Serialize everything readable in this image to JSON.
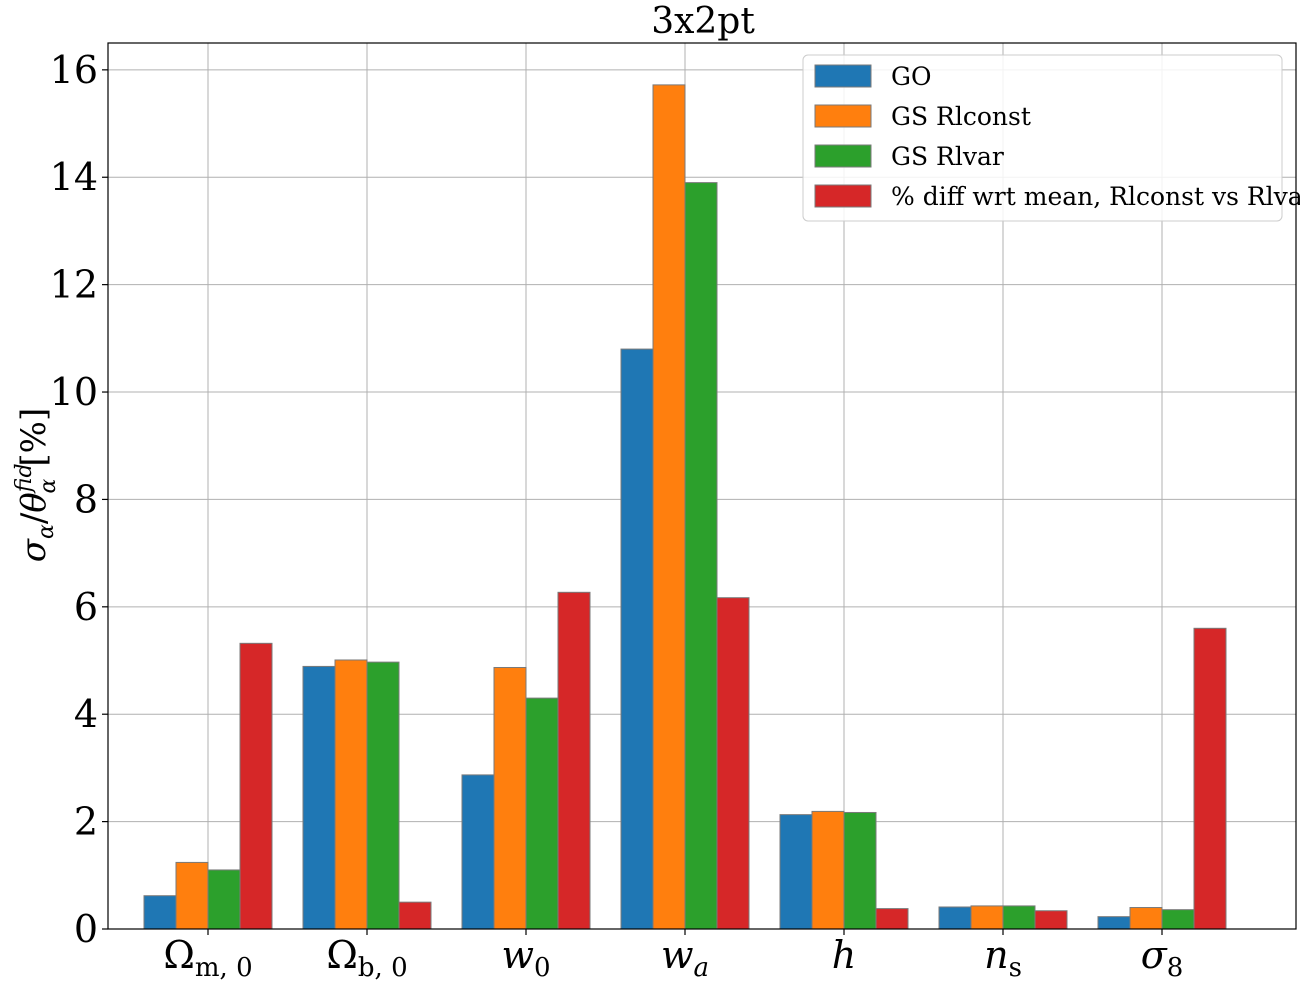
{
  "chart_data": {
    "type": "bar",
    "title": "3x2pt",
    "ylabel_parts": {
      "sigma": "σ",
      "sub_alpha": "α",
      "slash": "/",
      "theta": "θ",
      "sup_fid": "fid",
      "unit": "[%]"
    },
    "categories": [
      {
        "base": "Ω",
        "sub": "m, 0",
        "style": "upright"
      },
      {
        "base": "Ω",
        "sub": "b, 0",
        "style": "upright"
      },
      {
        "base": "w",
        "sub": "0",
        "style": "italic"
      },
      {
        "base": "w",
        "sub": "a",
        "style": "italic"
      },
      {
        "base": "h",
        "sub": "",
        "style": "italic"
      },
      {
        "base": "n",
        "sub": "s",
        "style": "italic"
      },
      {
        "base": "σ",
        "sub": "8",
        "style": "italic"
      }
    ],
    "series": [
      {
        "name": "GO",
        "color": "#1f77b4",
        "values": [
          0.62,
          4.89,
          2.87,
          10.8,
          2.13,
          0.41,
          0.23
        ]
      },
      {
        "name": "GS Rlconst",
        "color": "#ff7f0e",
        "values": [
          1.24,
          5.01,
          4.87,
          15.72,
          2.19,
          0.43,
          0.4
        ]
      },
      {
        "name": "GS Rlvar",
        "color": "#2ca02c",
        "values": [
          1.1,
          4.97,
          4.3,
          13.9,
          2.17,
          0.43,
          0.36
        ]
      },
      {
        "name": "% diff wrt mean, Rlconst vs Rlvar",
        "color": "#d62728",
        "values": [
          5.32,
          0.5,
          6.27,
          6.17,
          0.38,
          0.34,
          5.6
        ]
      }
    ],
    "ylim": [
      0,
      16.5
    ],
    "yticks": [
      "0",
      "2",
      "4",
      "6",
      "8",
      "10",
      "12",
      "14",
      "16"
    ],
    "grid": true,
    "legend_position": "top-right"
  }
}
